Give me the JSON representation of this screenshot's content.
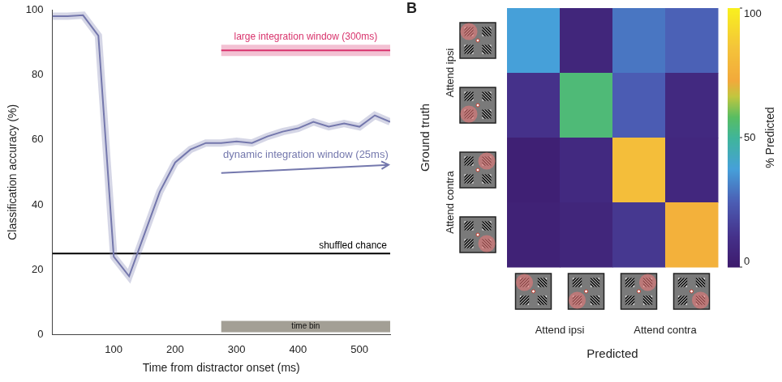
{
  "chart_data": [
    {
      "type": "line",
      "x_title": "Time from distractor onset (ms)",
      "y_title": "Classification accuracy (%)",
      "xlim": [
        0,
        550
      ],
      "xticks": [
        100,
        200,
        300,
        400,
        500
      ],
      "ylim": [
        0,
        100
      ],
      "yticks": [
        0,
        20,
        40,
        60,
        80,
        100
      ],
      "grid": false,
      "series": [
        {
          "name": "dynamic integration window (25ms)",
          "color": "#7478ad",
          "line_style": "shaded",
          "x": [
            0,
            25,
            50,
            75,
            100,
            125,
            150,
            175,
            200,
            225,
            250,
            275,
            300,
            325,
            350,
            375,
            400,
            425,
            450,
            475,
            500,
            525,
            550
          ],
          "values": [
            98,
            98,
            98.3,
            92,
            24,
            18,
            31,
            44,
            53,
            57,
            59,
            59,
            59.5,
            59,
            61,
            62.5,
            63.5,
            65.5,
            64,
            65,
            64,
            67.5,
            65.5
          ]
        },
        {
          "name": "large integration window (300ms)",
          "color": "#d8336c",
          "line_style": "shaded",
          "x": [
            275,
            550
          ],
          "values": [
            87.5,
            87.5
          ]
        },
        {
          "name": "shuffled chance",
          "color": "#000000",
          "line_style": "solid",
          "x": [
            0,
            550
          ],
          "values": [
            25,
            25
          ]
        },
        {
          "name": "time bin",
          "color": "#a39f95",
          "line_style": "thick",
          "x": [
            275,
            550
          ],
          "values": [
            2.5,
            2.5
          ]
        }
      ]
    },
    {
      "type": "heatmap",
      "panel": "B",
      "x_title": "Predicted",
      "y_title": "Ground truth",
      "row_groups": [
        "Attend ipsi",
        "Attend ipsi",
        "Attend contra",
        "Attend contra"
      ],
      "column_groups": [
        "Attend ipsi",
        "Attend ipsi",
        "Attend contra",
        "Attend contra"
      ],
      "cells": [
        [
          38,
          6,
          30,
          26
        ],
        [
          12,
          55,
          25,
          8
        ],
        [
          3,
          8,
          82,
          7
        ],
        [
          4,
          6,
          14,
          76
        ]
      ],
      "colorbar": {
        "title": "% Predicted",
        "range": [
          0,
          100
        ],
        "ticks": [
          0,
          50,
          100
        ]
      },
      "tick_labels": false
    }
  ]
}
